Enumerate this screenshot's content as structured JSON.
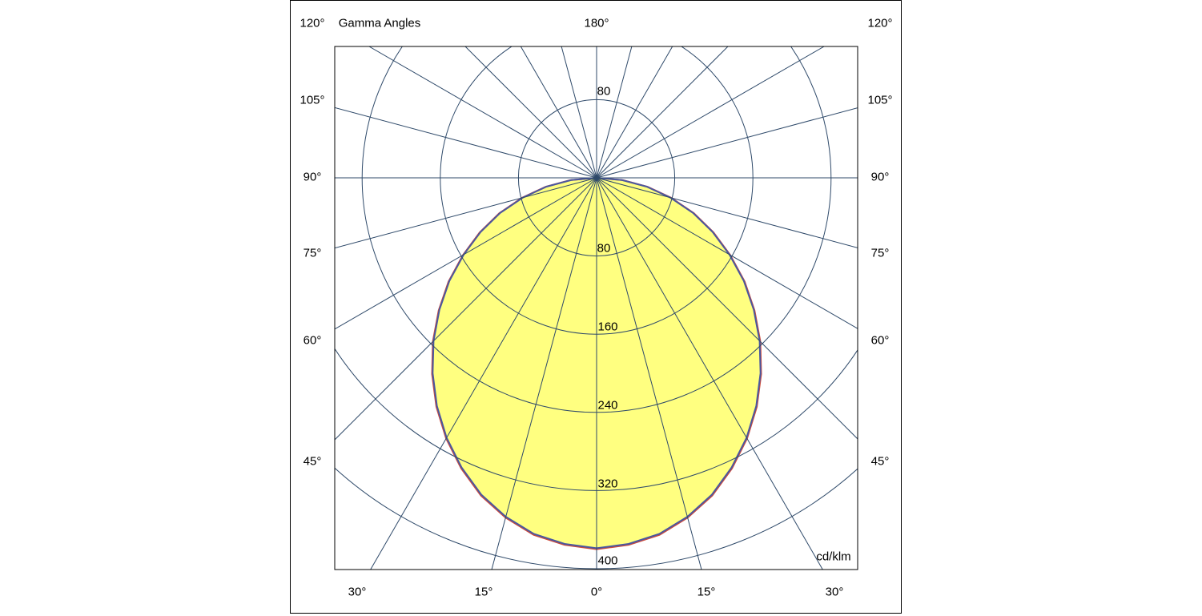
{
  "chart_data": {
    "type": "polar",
    "title": "Gamma Angles",
    "unit_label": "cd/klm",
    "radial_ticks": [
      80,
      160,
      240,
      320,
      400
    ],
    "radial_range": [
      0,
      400
    ],
    "angle_step_deg": 15,
    "angle_labels": {
      "top_center": "180°",
      "left": [
        "120°",
        "105°",
        "90°",
        "75°",
        "60°",
        "45°"
      ],
      "right": [
        "120°",
        "105°",
        "90°",
        "75°",
        "60°",
        "45°"
      ],
      "bottom": [
        "30°",
        "15°",
        "0°",
        "15°",
        "30°"
      ]
    },
    "grid": true,
    "fill_color": "#ffff80",
    "grid_color": "#2f4a6a",
    "gamma_deg": [
      0,
      5,
      10,
      15,
      20,
      25,
      30,
      35,
      40,
      45,
      50,
      55,
      60,
      65,
      70,
      75,
      80,
      85,
      90
    ],
    "series": [
      {
        "color": "#d04a3a",
        "values": [
          380,
          377,
          371,
          360,
          346,
          328,
          308,
          286,
          262,
          237,
          211,
          185,
          158,
          132,
          106,
          79,
          53,
          27,
          0
        ]
      },
      {
        "color": "#4a58a0",
        "values": [
          379,
          376,
          370,
          359,
          345,
          327,
          307,
          285,
          261,
          236,
          210,
          184,
          157,
          131,
          105,
          78,
          52,
          26,
          0
        ]
      }
    ]
  }
}
